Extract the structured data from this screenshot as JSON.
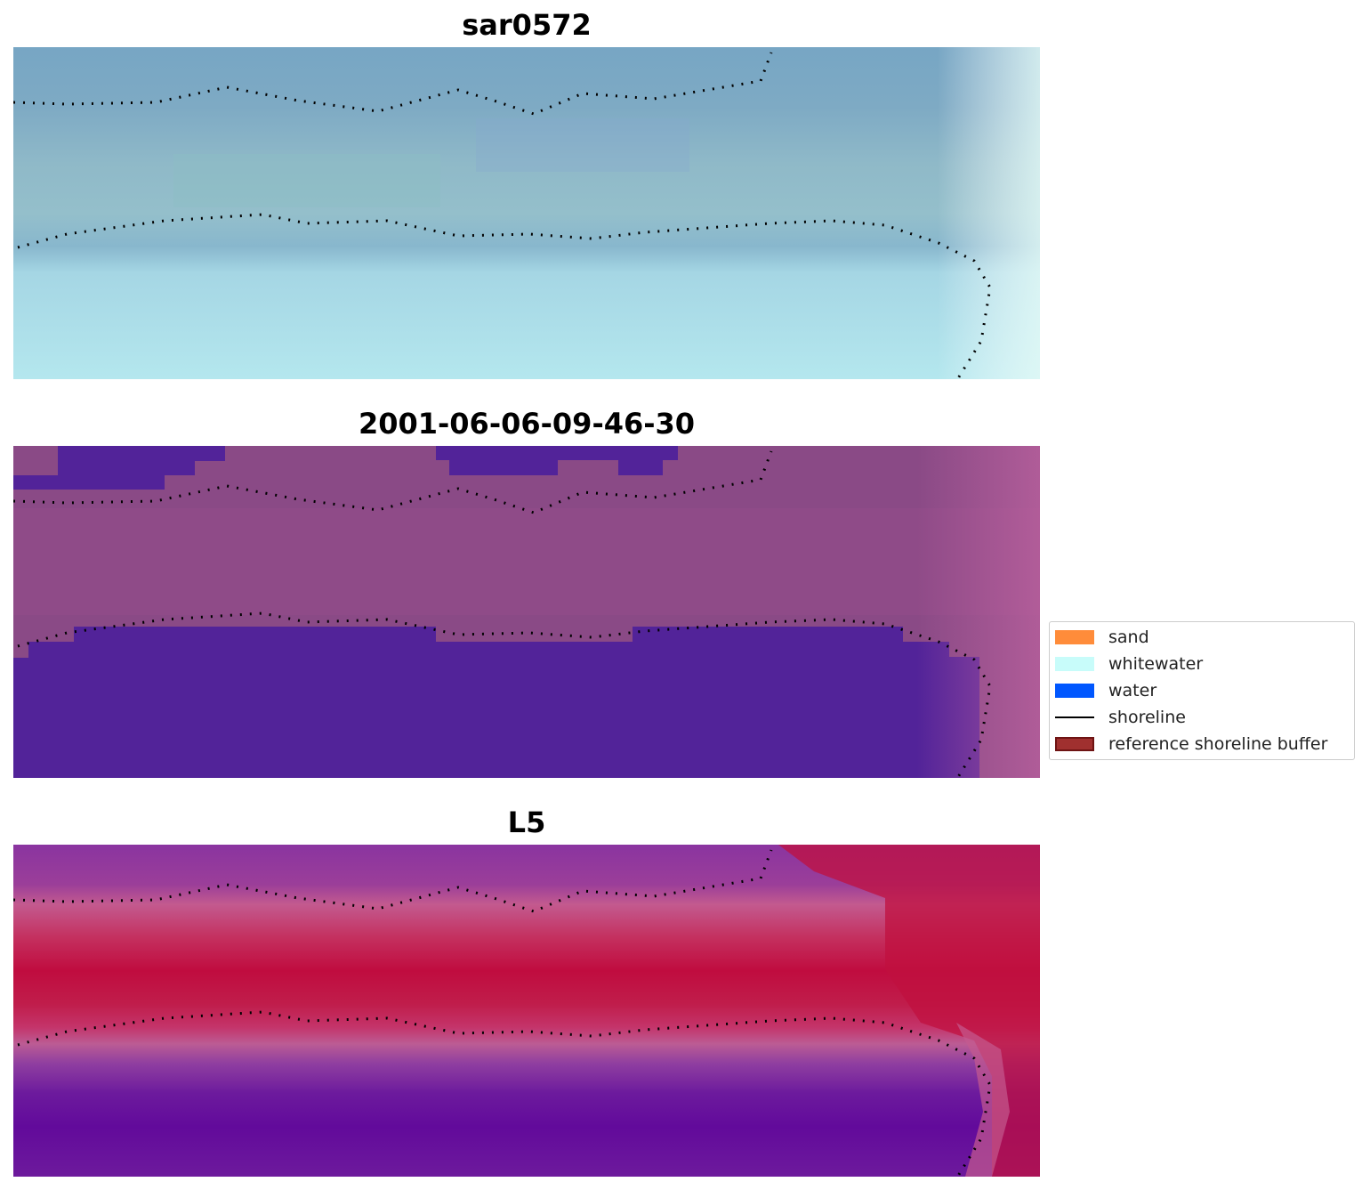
{
  "panels": [
    {
      "title": "sar0572",
      "palette": "sar"
    },
    {
      "title": "2001-06-06-09-46-30",
      "palette": "classified"
    },
    {
      "title": "L5",
      "palette": "index"
    }
  ],
  "legend": [
    {
      "label": "sand",
      "color": "#ff8c3a",
      "kind": "patch"
    },
    {
      "label": "whitewater",
      "color": "#c8fcfa",
      "kind": "patch"
    },
    {
      "label": "water",
      "color": "#0057ff",
      "kind": "patch"
    },
    {
      "label": "shoreline",
      "color": "#000000",
      "kind": "line"
    },
    {
      "label": "reference shoreline buffer",
      "color": "#a0302f",
      "kind": "patch-edge"
    }
  ],
  "colors": {
    "sar_dark": "#7aa6c3",
    "sar_light": "#b6e6ef",
    "classified_purple_bg": "#8a4a86",
    "classified_water": "#522399",
    "index_red": "#c0103f",
    "index_pink": "#c45a8e",
    "index_purple": "#6a0f9c"
  }
}
